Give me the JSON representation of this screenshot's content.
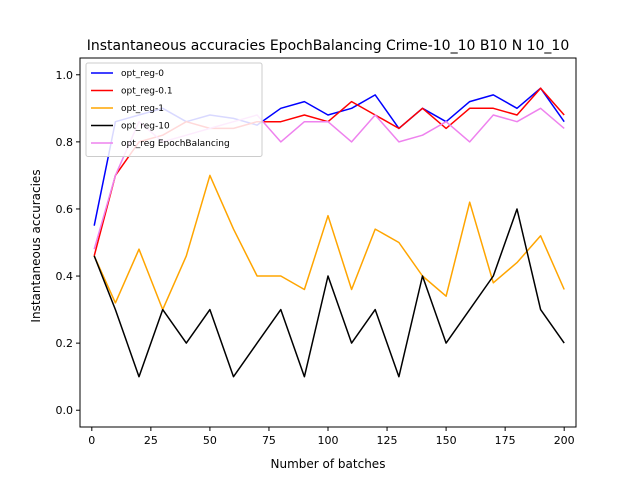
{
  "chart_data": {
    "type": "line",
    "title": "Instantaneous accuracies EpochBalancing Crime-10_10 B10 N 10_10",
    "xlabel": "Number of batches",
    "ylabel": "Instantaneous accuracies",
    "xlim": [
      -5,
      205
    ],
    "ylim": [
      -0.05,
      1.05
    ],
    "xticks": [
      0,
      25,
      50,
      75,
      100,
      125,
      150,
      175,
      200
    ],
    "yticks": [
      0.0,
      0.2,
      0.4,
      0.6,
      0.8,
      1.0
    ],
    "xtick_labels": [
      "0",
      "25",
      "50",
      "75",
      "100",
      "125",
      "150",
      "175",
      "200"
    ],
    "ytick_labels": [
      "0.0",
      "0.2",
      "0.4",
      "0.6",
      "0.8",
      "1.0"
    ],
    "grid": false,
    "legend_position": "top-left",
    "series": [
      {
        "name": "opt_reg-0",
        "color": "#0000ff",
        "x": [
          1,
          10,
          20,
          30,
          40,
          50,
          60,
          70,
          80,
          90,
          100,
          110,
          120,
          130,
          140,
          150,
          160,
          170,
          180,
          190,
          200
        ],
        "y": [
          0.55,
          0.86,
          0.88,
          0.9,
          0.86,
          0.88,
          0.87,
          0.85,
          0.9,
          0.92,
          0.88,
          0.9,
          0.94,
          0.84,
          0.9,
          0.86,
          0.92,
          0.94,
          0.9,
          0.96,
          0.86
        ]
      },
      {
        "name": "opt_reg-0.1",
        "color": "#ff0000",
        "x": [
          1,
          10,
          20,
          30,
          40,
          50,
          60,
          70,
          80,
          90,
          100,
          110,
          120,
          130,
          140,
          150,
          160,
          170,
          180,
          190,
          200
        ],
        "y": [
          0.46,
          0.7,
          0.8,
          0.82,
          0.86,
          0.84,
          0.84,
          0.86,
          0.86,
          0.88,
          0.86,
          0.92,
          0.88,
          0.84,
          0.9,
          0.84,
          0.9,
          0.9,
          0.88,
          0.96,
          0.88
        ]
      },
      {
        "name": "opt_reg-1",
        "color": "#ffa500",
        "x": [
          1,
          10,
          20,
          30,
          40,
          50,
          60,
          70,
          80,
          90,
          100,
          110,
          120,
          130,
          140,
          150,
          160,
          170,
          180,
          190,
          200
        ],
        "y": [
          0.46,
          0.32,
          0.48,
          0.3,
          0.46,
          0.7,
          0.54,
          0.4,
          0.4,
          0.36,
          0.58,
          0.36,
          0.54,
          0.5,
          0.4,
          0.34,
          0.62,
          0.38,
          0.44,
          0.52,
          0.36
        ]
      },
      {
        "name": "opt_reg-10",
        "color": "#000000",
        "x": [
          1,
          10,
          20,
          30,
          40,
          50,
          60,
          70,
          80,
          90,
          100,
          110,
          120,
          130,
          140,
          150,
          160,
          170,
          180,
          190,
          200
        ],
        "y": [
          0.46,
          0.3,
          0.1,
          0.3,
          0.2,
          0.3,
          0.1,
          0.2,
          0.3,
          0.1,
          0.4,
          0.2,
          0.3,
          0.1,
          0.4,
          0.2,
          0.3,
          0.4,
          0.6,
          0.3,
          0.2
        ]
      },
      {
        "name": "opt_reg EpochBalancing",
        "color": "#ee82ee",
        "x": [
          1,
          10,
          20,
          30,
          40,
          50,
          60,
          70,
          80,
          90,
          100,
          110,
          120,
          130,
          140,
          150,
          160,
          170,
          180,
          190,
          200
        ],
        "y": [
          0.48,
          0.7,
          0.86,
          0.8,
          0.82,
          0.84,
          0.86,
          0.88,
          0.8,
          0.86,
          0.86,
          0.8,
          0.88,
          0.8,
          0.82,
          0.86,
          0.8,
          0.88,
          0.86,
          0.9,
          0.84
        ]
      }
    ]
  }
}
